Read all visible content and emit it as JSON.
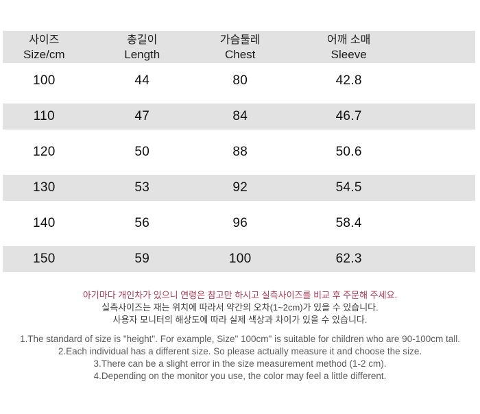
{
  "size_chart": {
    "headers": [
      {
        "ko": "사이즈",
        "en": "Size/cm"
      },
      {
        "ko": "총길이",
        "en": "Length"
      },
      {
        "ko": "가슴둘레",
        "en": "Chest"
      },
      {
        "ko": "어깨 소매",
        "en": "Sleeve"
      }
    ],
    "rows": [
      {
        "size": "100",
        "length": "44",
        "chest": "80",
        "sleeve": "42.8"
      },
      {
        "size": "110",
        "length": "47",
        "chest": "84",
        "sleeve": "46.7"
      },
      {
        "size": "120",
        "length": "50",
        "chest": "88",
        "sleeve": "50.6"
      },
      {
        "size": "130",
        "length": "53",
        "chest": "92",
        "sleeve": "54.5"
      },
      {
        "size": "140",
        "length": "56",
        "chest": "96",
        "sleeve": "58.4"
      },
      {
        "size": "150",
        "length": "59",
        "chest": "100",
        "sleeve": "62.3"
      }
    ]
  },
  "notes": {
    "highlight_ko": "아기마다 개인차가 있으니 연령은 참고만 하시고 실측사이즈를 비교 후 주문해 주세요.",
    "ko": [
      "실측사이즈는 재는 위치에 따라서 약간의  오차(1~2cm)가 있을 수 있습니다.",
      "사용자 모니터의 해상도에 따라 실제 색상과 차이가 있을 수 있습니다."
    ],
    "en": [
      "1.The standard of size is \"height\". For example,  Size\" 100cm\" is suitable for children who are 90-100cm tall.",
      "2.Each individual has a different size. So please actually measure it and choose the size.",
      "3.There can be a slight error in the size measurement method (1-2 cm).",
      "4.Depending on the monitor you use, the color may feel a little different."
    ]
  },
  "colors": {
    "stripe_gray": "#e2e2e2",
    "accent_red": "#b23a55",
    "note_gray": "#5a5a5a"
  }
}
